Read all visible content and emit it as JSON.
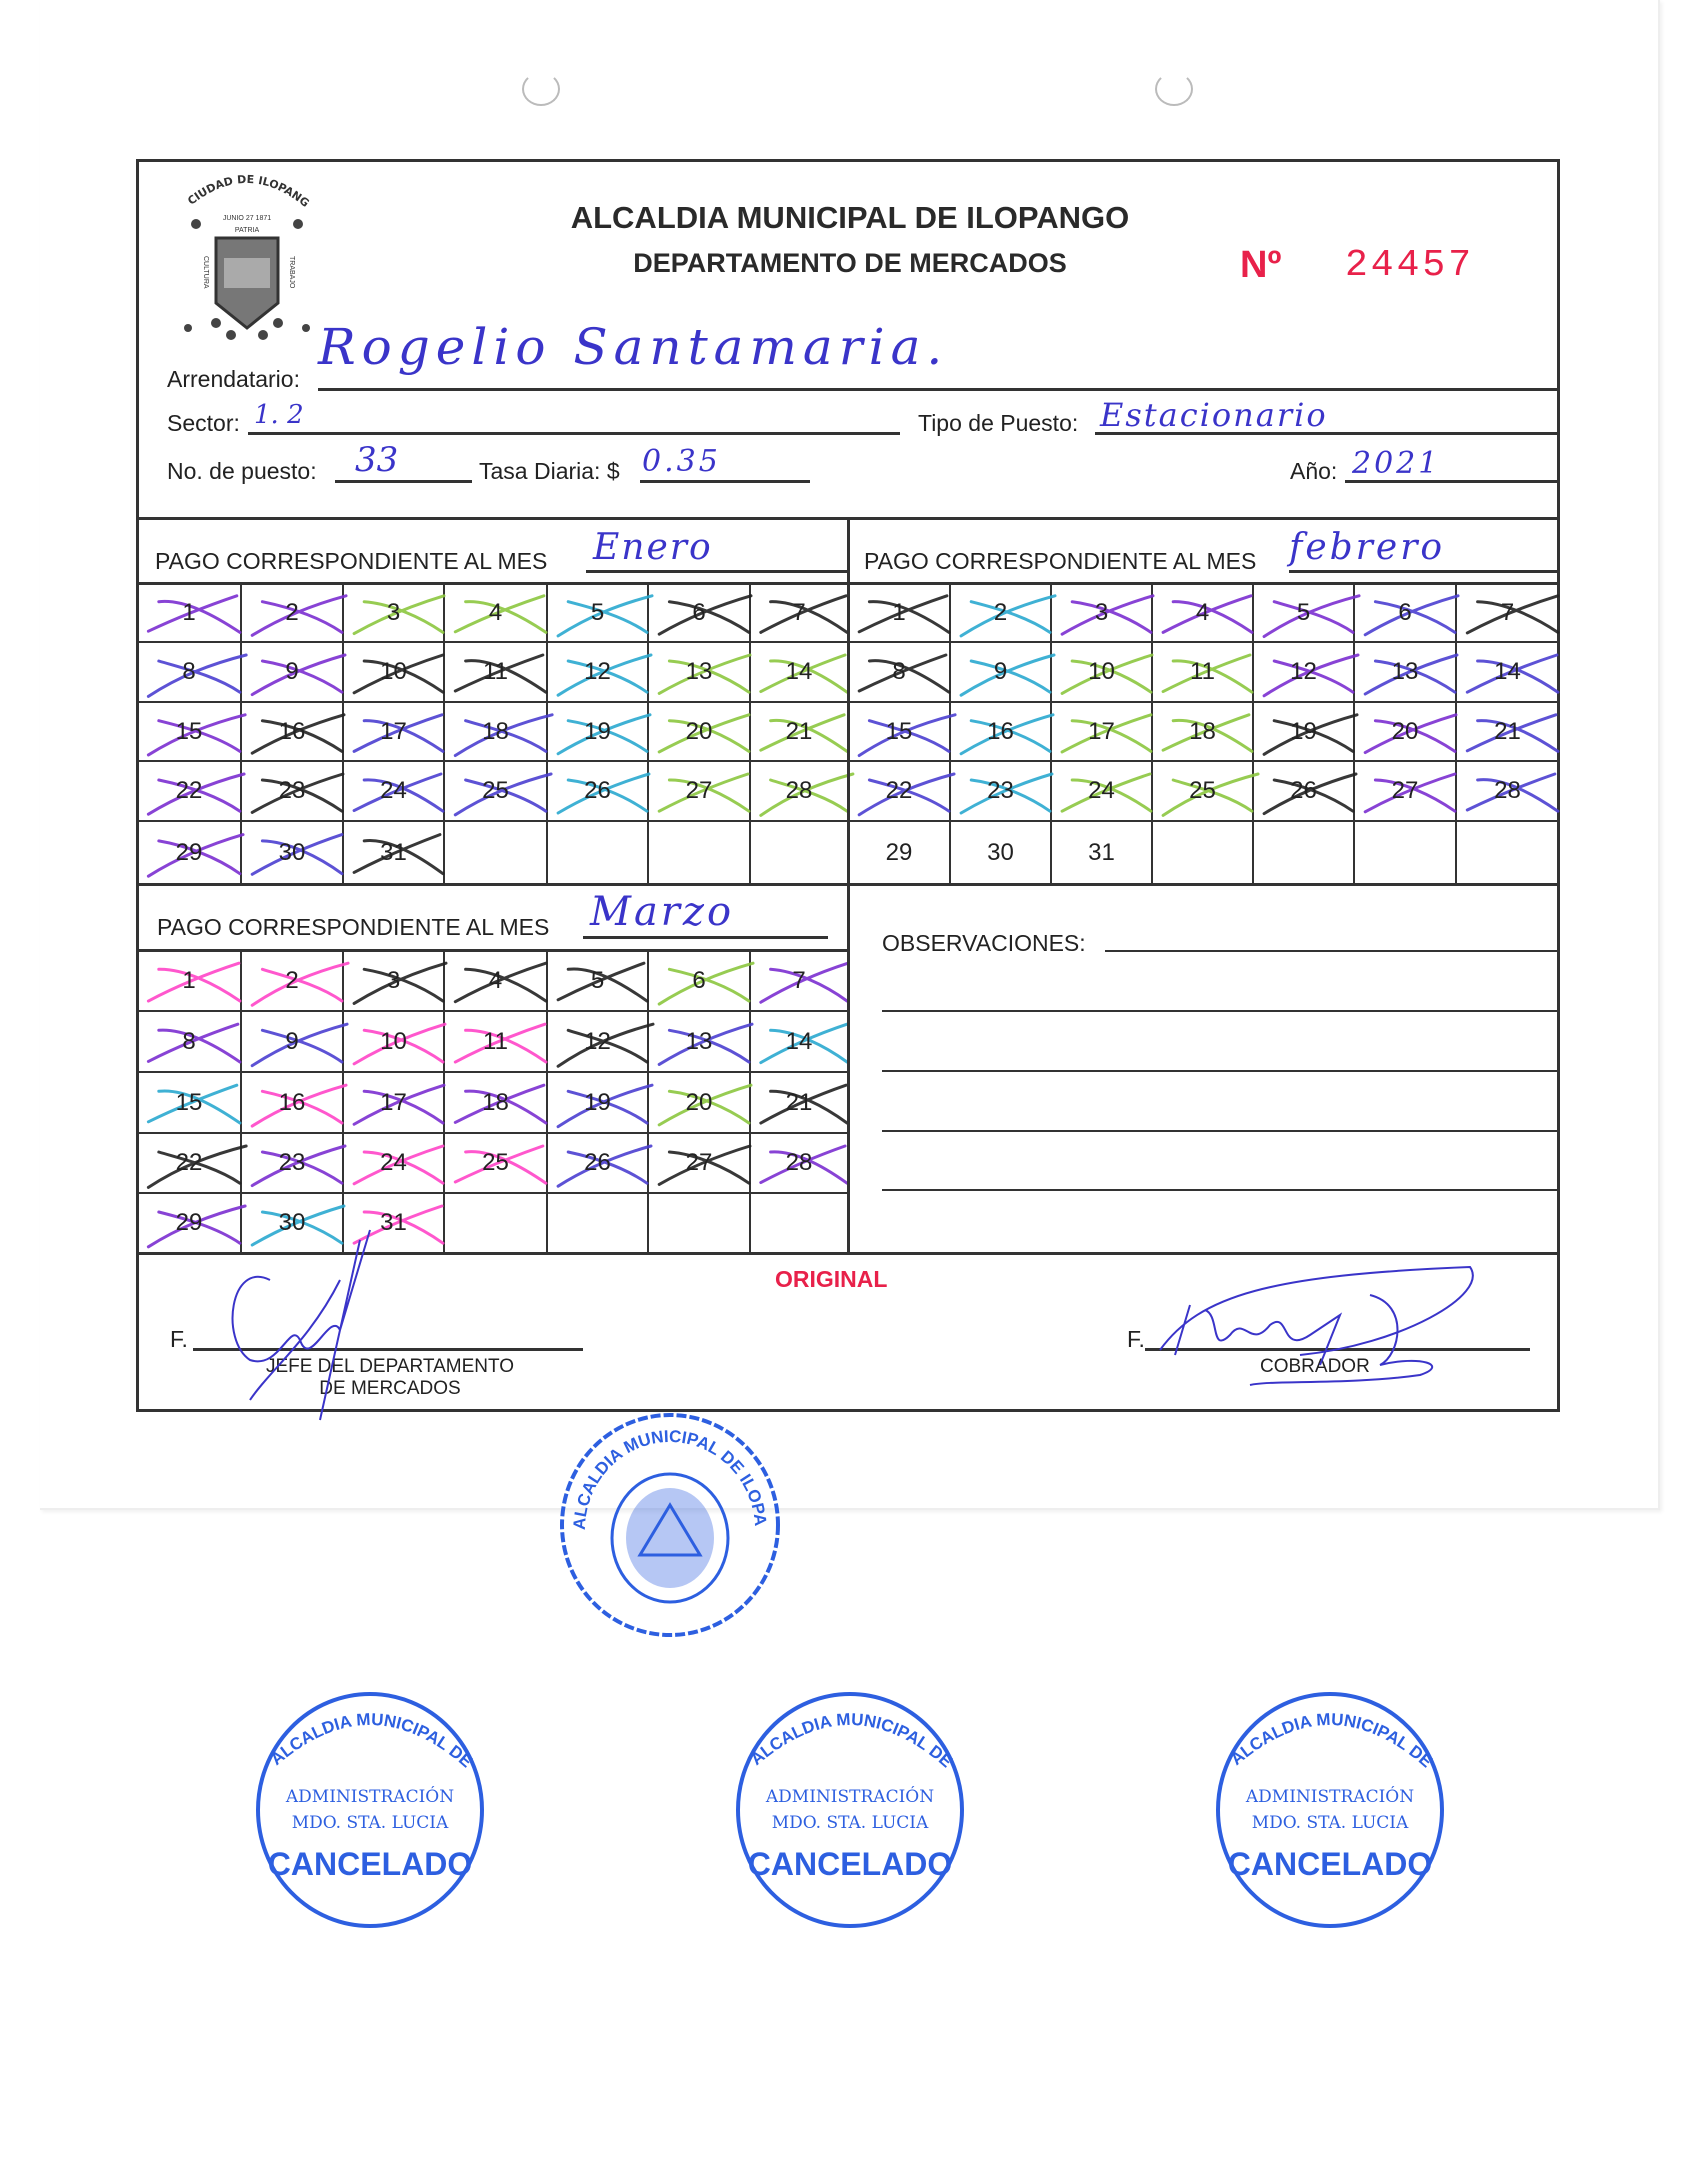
{
  "header": {
    "title": "ALCALDIA MUNICIPAL DE ILOPANGO",
    "subtitle": "DEPARTAMENTO DE MERCADOS",
    "number_label": "Nº",
    "number": "24457",
    "logo_text": [
      "CIUDAD DE ILOPANGO",
      "JUNIO 27 1871",
      "PATRIA",
      "CULTURA",
      "TRABAJO"
    ]
  },
  "fields": {
    "arrendatario_label": "Arrendatario:",
    "arrendatario_value": "Rogelio  Santamaria.",
    "sector_label": "Sector:",
    "sector_value": "1. 2",
    "tipo_label": "Tipo de Puesto:",
    "tipo_value": "Estacionario",
    "puesto_label": "No. de puesto:",
    "puesto_value": "33",
    "tasa_label": "Tasa Diaria: $",
    "tasa_value": "0.35",
    "anio_label": "Año:",
    "anio_value": "2021"
  },
  "colors": {
    "P": "#7b2fd0",
    "G": "#8cc63f",
    "C": "#2aa9cf",
    "K": "#222222",
    "B": "#4b3fd0",
    "M": "#ff45c8",
    "stamp": "#2d5fe0",
    "red": "#e8214a"
  },
  "months": [
    {
      "label": "PAGO CORRESPONDIENTE AL MES",
      "value": "Enero",
      "days": [
        "1",
        "2",
        "3",
        "4",
        "5",
        "6",
        "7",
        "8",
        "9",
        "10",
        "11",
        "12",
        "13",
        "14",
        "15",
        "16",
        "17",
        "18",
        "19",
        "20",
        "21",
        "22",
        "23",
        "24",
        "25",
        "26",
        "27",
        "28",
        "29",
        "30",
        "31"
      ],
      "marks": [
        "P",
        "P",
        "G",
        "G",
        "C",
        "K",
        "K",
        "B",
        "P",
        "K",
        "K",
        "C",
        "G",
        "G",
        "P",
        "K",
        "B",
        "B",
        "C",
        "G",
        "G",
        "P",
        "K",
        "B",
        "B",
        "C",
        "G",
        "G",
        "P",
        "B",
        "K"
      ]
    },
    {
      "label": "PAGO CORRESPONDIENTE AL MES",
      "value": "febrero",
      "days": [
        "1",
        "2",
        "3",
        "4",
        "5",
        "6",
        "7",
        "8",
        "9",
        "10",
        "11",
        "12",
        "13",
        "14",
        "15",
        "16",
        "17",
        "18",
        "19",
        "20",
        "21",
        "22",
        "23",
        "24",
        "25",
        "26",
        "27",
        "28",
        "29",
        "30",
        "31"
      ],
      "marks": [
        "K",
        "C",
        "P",
        "P",
        "P",
        "B",
        "K",
        "K",
        "C",
        "G",
        "G",
        "P",
        "B",
        "B",
        "B",
        "C",
        "G",
        "G",
        "K",
        "P",
        "B",
        "B",
        "C",
        "G",
        "G",
        "K",
        "P",
        "B",
        "",
        "",
        ""
      ]
    },
    {
      "label": "PAGO CORRESPONDIENTE AL MES",
      "value": "Marzo",
      "days": [
        "1",
        "2",
        "3",
        "4",
        "5",
        "6",
        "7",
        "8",
        "9",
        "10",
        "11",
        "12",
        "13",
        "14",
        "15",
        "16",
        "17",
        "18",
        "19",
        "20",
        "21",
        "22",
        "23",
        "24",
        "25",
        "26",
        "27",
        "28",
        "29",
        "30",
        "31"
      ],
      "marks": [
        "M",
        "M",
        "K",
        "K",
        "K",
        "G",
        "P",
        "P",
        "B",
        "M",
        "M",
        "K",
        "B",
        "C",
        "C",
        "M",
        "P",
        "P",
        "B",
        "G",
        "K",
        "K",
        "P",
        "M",
        "M",
        "B",
        "K",
        "P",
        "P",
        "C",
        "M"
      ]
    }
  ],
  "observaciones_label": "OBSERVACIONES:",
  "footer": {
    "original": "ORIGINAL",
    "f_left": "F.",
    "jefe_line1": "JEFE DEL DEPARTAMENTO",
    "jefe_line2": "DE MERCADOS",
    "f_right": "F.",
    "cobrador": "COBRADOR"
  },
  "stamps": {
    "cancel_outer": "ALCALDIA MUNICIPAL DE ILOPANGO",
    "cancel_mid1": "ADMINISTRACIÓN",
    "cancel_mid2": "MDO. STA. LUCIA",
    "cancel_main": "CANCELADO",
    "seal_outer": "ALCALDIA MUNICIPAL DE ILOPANGO"
  }
}
